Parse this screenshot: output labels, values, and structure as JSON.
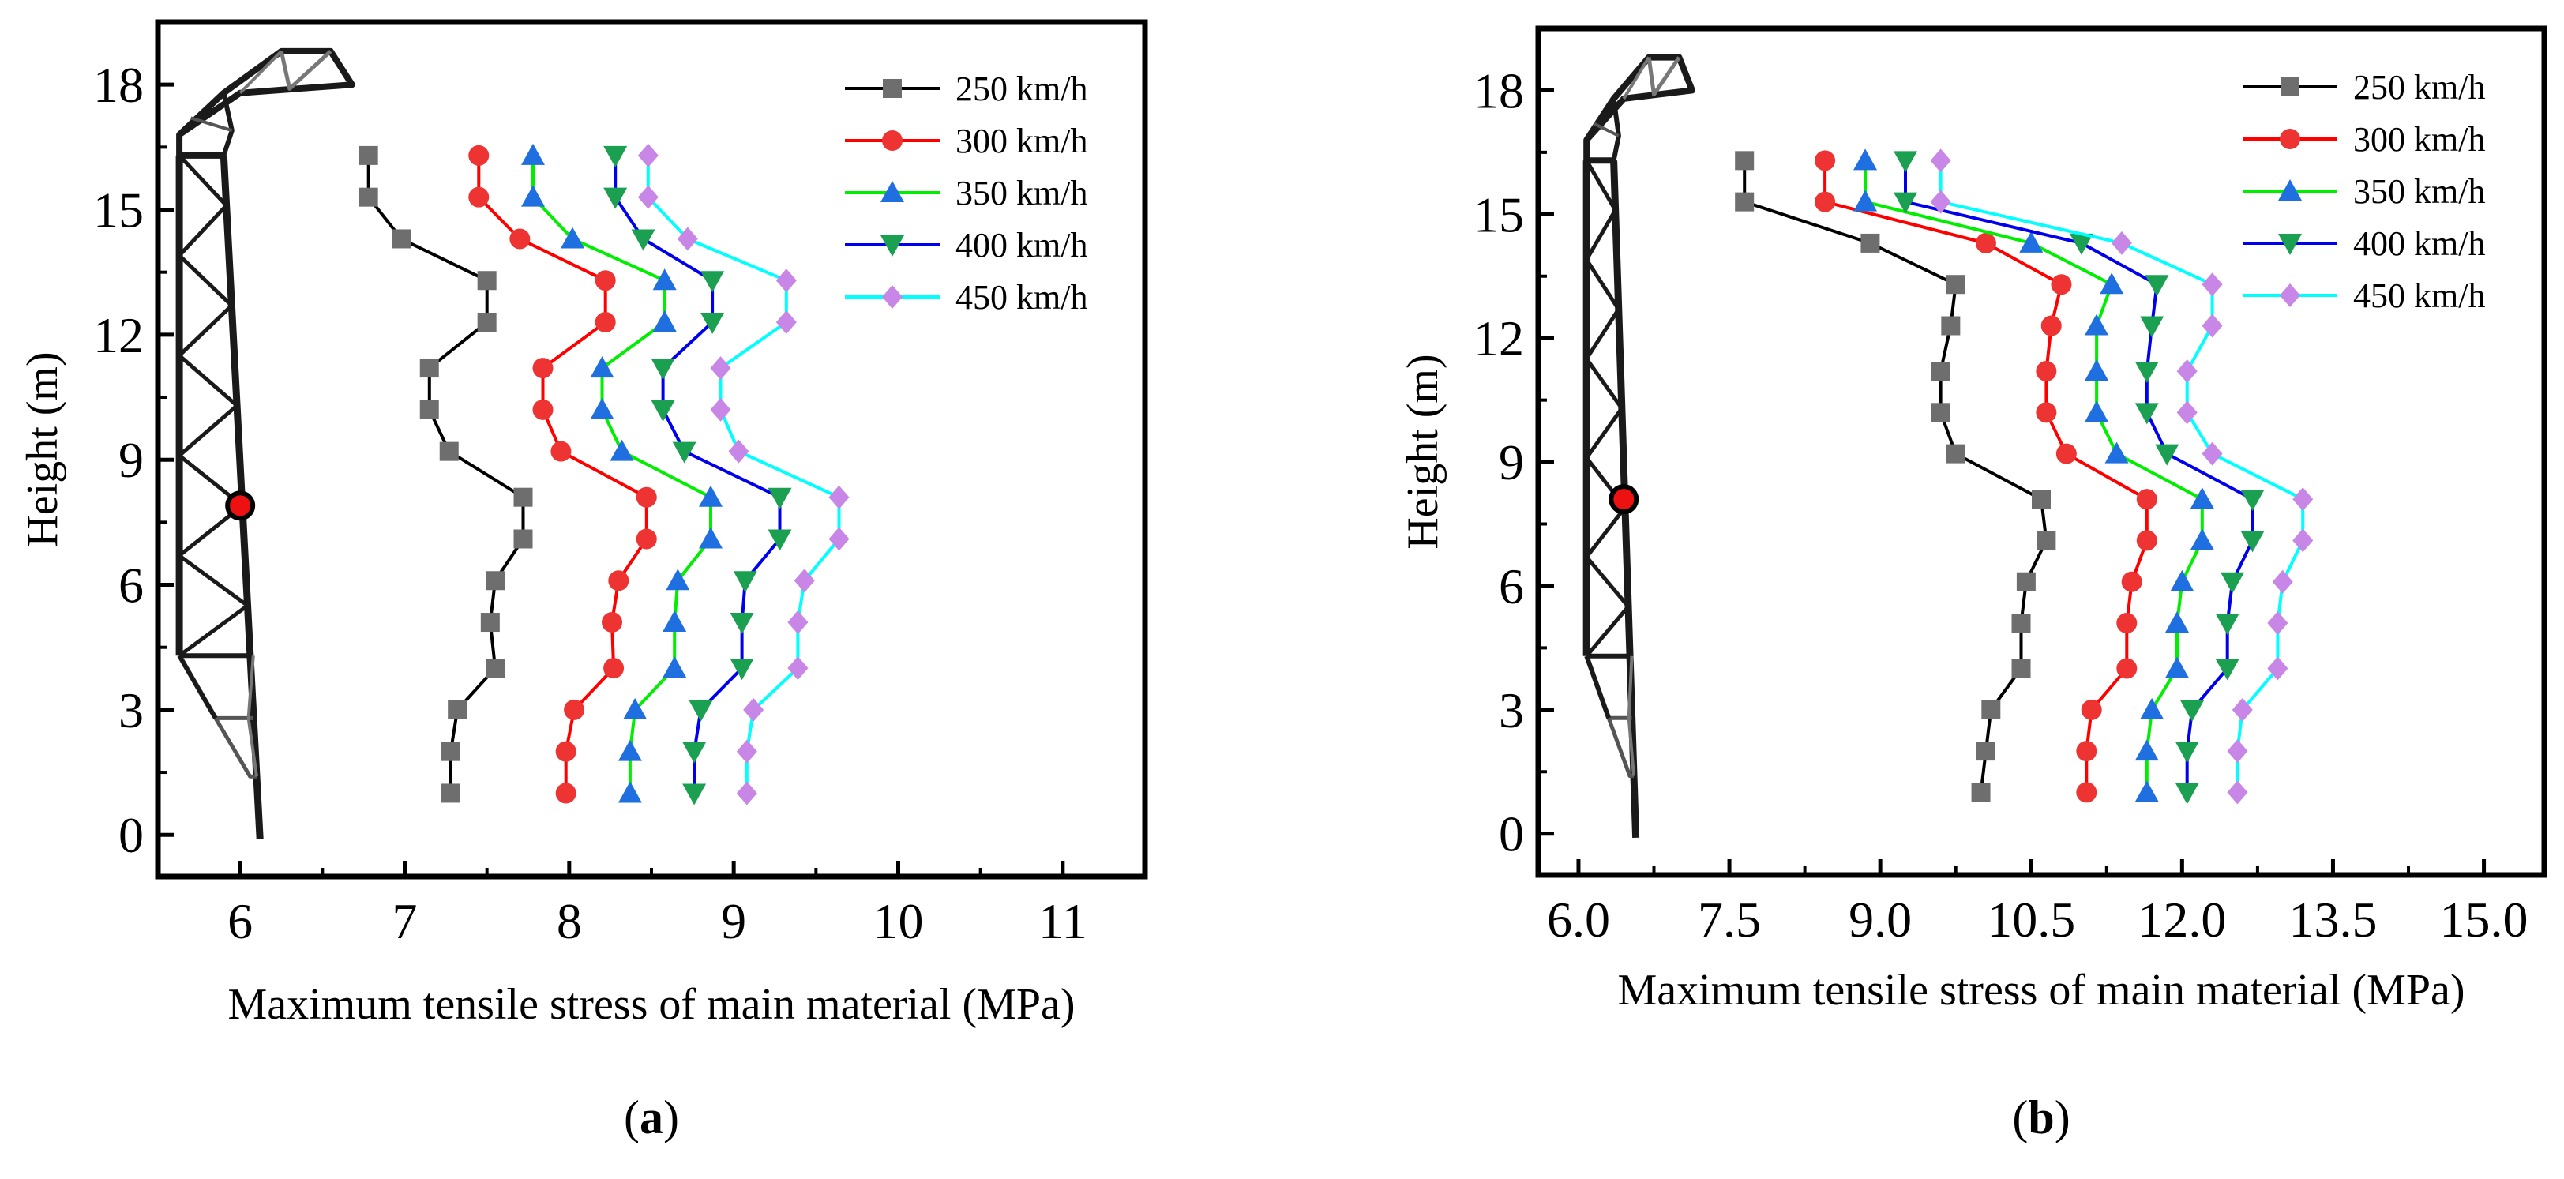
{
  "series_names": [
    "250 km/h",
    "300 km/h",
    "350 km/h",
    "400 km/h",
    "450 km/h"
  ],
  "series_styles": [
    {
      "color": "#000000",
      "marker_color": "#6e6e6e",
      "marker": "square"
    },
    {
      "color": "#ff0000",
      "marker_color": "#ee3333",
      "marker": "circle"
    },
    {
      "color": "#00ee00",
      "marker_color": "#1f6fe0",
      "marker": "triangle-up"
    },
    {
      "color": "#0000ee",
      "marker_color": "#1aa050",
      "marker": "triangle-down"
    },
    {
      "color": "#00ffff",
      "marker_color": "#c886e6",
      "marker": "diamond"
    }
  ],
  "tower_point_color": "#ee1111",
  "chart_data": [
    {
      "panel_label": "a",
      "type": "line",
      "xlabel": "Maximum tensile stress of main material (MPa)",
      "ylabel": "Height (m)",
      "xlim": [
        5.5,
        11.5
      ],
      "ylim": [
        -1.0,
        19.5
      ],
      "x_ticks": [
        6,
        7,
        8,
        9,
        10,
        11
      ],
      "x_tick_labels": [
        "6",
        "7",
        "8",
        "9",
        "10",
        "11"
      ],
      "y_ticks": [
        0,
        3,
        6,
        9,
        12,
        15,
        18
      ],
      "y_tick_labels": [
        "0",
        "3",
        "6",
        "9",
        "12",
        "15",
        "18"
      ],
      "heights": [
        1.0,
        2.0,
        3.0,
        4.0,
        5.1,
        6.1,
        7.1,
        8.1,
        9.2,
        10.2,
        11.2,
        12.3,
        13.3,
        14.3,
        15.3,
        16.3
      ],
      "series": [
        {
          "name": "250 km/h",
          "values": [
            7.28,
            7.28,
            7.32,
            7.55,
            7.52,
            7.55,
            7.72,
            7.72,
            7.27,
            7.15,
            7.15,
            7.5,
            7.5,
            6.98,
            6.78,
            6.78
          ]
        },
        {
          "name": "300 km/h",
          "values": [
            7.98,
            7.98,
            8.03,
            8.27,
            8.26,
            8.3,
            8.47,
            8.47,
            7.95,
            7.84,
            7.84,
            8.22,
            8.22,
            7.7,
            7.45,
            7.45
          ]
        },
        {
          "name": "350 km/h",
          "values": [
            8.37,
            8.37,
            8.4,
            8.64,
            8.64,
            8.66,
            8.86,
            8.86,
            8.32,
            8.2,
            8.2,
            8.58,
            8.58,
            8.02,
            7.78,
            7.78
          ]
        },
        {
          "name": "400 km/h",
          "values": [
            8.76,
            8.76,
            8.8,
            9.05,
            9.05,
            9.07,
            9.28,
            9.28,
            8.7,
            8.57,
            8.57,
            8.87,
            8.87,
            8.45,
            8.28,
            8.28
          ]
        },
        {
          "name": "450 km/h",
          "values": [
            9.08,
            9.08,
            9.12,
            9.39,
            9.39,
            9.43,
            9.64,
            9.64,
            9.03,
            8.92,
            8.92,
            9.32,
            9.32,
            8.72,
            8.48,
            8.48
          ]
        }
      ],
      "tower_point": {
        "x": 6.0,
        "y": 7.9
      }
    },
    {
      "panel_label": "b",
      "type": "line",
      "xlabel": "Maximum tensile stress of main material (MPa)",
      "ylabel": "Height (m)",
      "xlim": [
        5.6,
        15.6
      ],
      "ylim": [
        -1.0,
        19.5
      ],
      "x_ticks": [
        6.0,
        7.5,
        9.0,
        10.5,
        12.0,
        13.5,
        15.0
      ],
      "x_tick_labels": [
        "6.0",
        "7.5",
        "9.0",
        "10.5",
        "12.0",
        "13.5",
        "15.0"
      ],
      "y_ticks": [
        0,
        3,
        6,
        9,
        12,
        15,
        18
      ],
      "y_tick_labels": [
        "0",
        "3",
        "6",
        "9",
        "12",
        "15",
        "18"
      ],
      "heights": [
        1.0,
        2.0,
        3.0,
        4.0,
        5.1,
        6.1,
        7.1,
        8.1,
        9.2,
        10.2,
        11.2,
        12.3,
        13.3,
        14.3,
        15.3,
        16.3
      ],
      "series": [
        {
          "name": "250 km/h",
          "values": [
            10.0,
            10.05,
            10.1,
            10.4,
            10.4,
            10.45,
            10.65,
            10.6,
            9.75,
            9.6,
            9.6,
            9.7,
            9.75,
            8.9,
            7.65,
            7.65
          ]
        },
        {
          "name": "300 km/h",
          "values": [
            11.05,
            11.05,
            11.1,
            11.45,
            11.45,
            11.5,
            11.65,
            11.65,
            10.85,
            10.65,
            10.65,
            10.7,
            10.8,
            10.05,
            8.45,
            8.45
          ]
        },
        {
          "name": "350 km/h",
          "values": [
            11.65,
            11.65,
            11.7,
            11.95,
            11.95,
            12.0,
            12.2,
            12.2,
            11.35,
            11.15,
            11.15,
            11.15,
            11.3,
            10.5,
            8.85,
            8.85
          ]
        },
        {
          "name": "400 km/h",
          "values": [
            12.05,
            12.05,
            12.1,
            12.45,
            12.45,
            12.5,
            12.7,
            12.7,
            11.85,
            11.65,
            11.65,
            11.7,
            11.75,
            11.0,
            9.25,
            9.25
          ]
        },
        {
          "name": "450 km/h",
          "values": [
            12.55,
            12.55,
            12.6,
            12.95,
            12.95,
            13.0,
            13.2,
            13.2,
            12.3,
            12.05,
            12.05,
            12.3,
            12.3,
            11.4,
            9.6,
            9.6
          ]
        }
      ],
      "tower_point": {
        "x": 6.45,
        "y": 8.1
      }
    }
  ]
}
